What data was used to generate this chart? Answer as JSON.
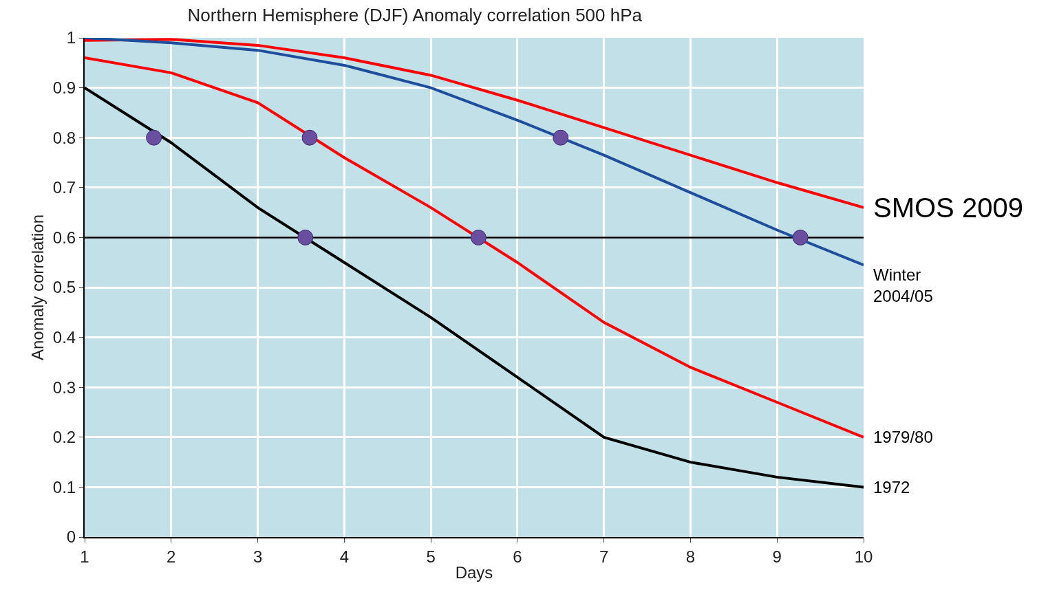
{
  "chart_data": {
    "type": "line",
    "title": "Northern Hemisphere (DJF) Anomaly correlation 500 hPa",
    "xlabel": "Days",
    "ylabel": "Anomaly correlation",
    "x": [
      1,
      2,
      3,
      4,
      5,
      6,
      7,
      8,
      9,
      10
    ],
    "series": [
      {
        "name": "SMOS 2009",
        "color": "#ff0000",
        "values": [
          0.995,
          0.997,
          0.985,
          0.96,
          0.925,
          0.875,
          0.82,
          0.765,
          0.71,
          0.66
        ]
      },
      {
        "name": "Winter\n2004/05",
        "color": "#1f4e9c",
        "values": [
          1.0,
          0.99,
          0.975,
          0.945,
          0.9,
          0.835,
          0.765,
          0.69,
          0.615,
          0.545
        ]
      },
      {
        "name": "1979/80",
        "color": "#ff0000",
        "values": [
          0.96,
          0.93,
          0.87,
          0.76,
          0.66,
          0.55,
          0.43,
          0.34,
          0.27,
          0.2
        ]
      },
      {
        "name": "1972",
        "color": "#000000",
        "values": [
          0.9,
          0.79,
          0.66,
          0.55,
          0.44,
          0.32,
          0.2,
          0.15,
          0.12,
          0.1
        ]
      },
      {
        "type": "scatter",
        "color": "#6a4fa0",
        "marker": "circle",
        "x": [
          1.8,
          3.6,
          6.5,
          3.55,
          5.55,
          9.27
        ],
        "values": [
          0.8,
          0.8,
          0.8,
          0.6,
          0.6,
          0.6
        ]
      }
    ],
    "ref_lines": [
      {
        "axis": "y",
        "value": 0.6,
        "color": "#000000"
      }
    ],
    "xlim": [
      1,
      10
    ],
    "xticks": [
      1,
      2,
      3,
      4,
      5,
      6,
      7,
      8,
      9,
      10
    ],
    "ylim": [
      0,
      1
    ],
    "yticks": [
      0,
      0.1,
      0.2,
      0.3,
      0.4,
      0.5,
      0.6,
      0.7,
      0.8,
      0.9,
      1
    ],
    "grid": true,
    "legend": false,
    "marker": "none",
    "line_style": "solid"
  }
}
